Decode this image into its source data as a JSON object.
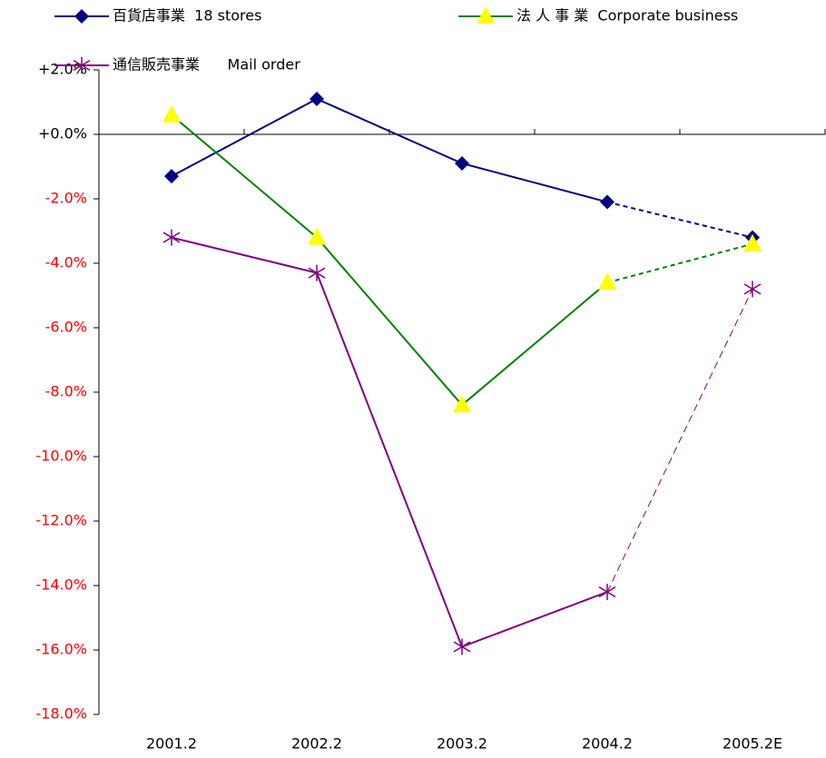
{
  "chart_data": {
    "type": "line",
    "categories": [
      "2001.2",
      "2002.2",
      "2003.2",
      "2004.2",
      "2005.2E"
    ],
    "series": [
      {
        "name": "百貨店事業  18 stores",
        "color": "#000080",
        "marker": "diamond",
        "values": [
          -1.3,
          1.1,
          -0.9,
          -2.1,
          -3.2
        ]
      },
      {
        "name": "法 人 事 業  Corporate business",
        "color": "#008000",
        "marker_color": "#ffff00",
        "marker": "triangle",
        "values": [
          0.6,
          -3.2,
          -8.4,
          -4.6,
          -3.4
        ]
      },
      {
        "name": "通信販売事業      Mail order",
        "color": "#800080",
        "marker": "star",
        "values": [
          -3.2,
          -4.3,
          -15.9,
          -14.2,
          -4.8
        ]
      }
    ],
    "last_segment_dashed": true,
    "negative_tick_color": "#ff0000",
    "ylim": [
      -18,
      2
    ],
    "yticks": [
      {
        "value": 2,
        "label": "+2.0%"
      },
      {
        "value": 0,
        "label": "+0.0%"
      },
      {
        "value": -2,
        "label": "-2.0%"
      },
      {
        "value": -4,
        "label": "-4.0%"
      },
      {
        "value": -6,
        "label": "-6.0%"
      },
      {
        "value": -8,
        "label": "-8.0%"
      },
      {
        "value": -10,
        "label": "-10.0%"
      },
      {
        "value": -12,
        "label": "-12.0%"
      },
      {
        "value": -14,
        "label": "-14.0%"
      },
      {
        "value": -16,
        "label": "-16.0%"
      },
      {
        "value": -18,
        "label": "-18.0%"
      }
    ]
  }
}
